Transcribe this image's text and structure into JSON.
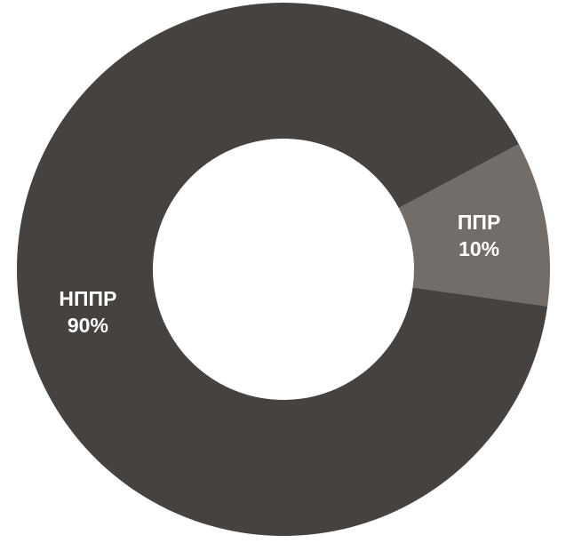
{
  "chart_data": {
    "type": "pie",
    "donut": true,
    "title": "",
    "categories": [
      "ППР",
      "НППР"
    ],
    "values": [
      10,
      90
    ],
    "value_labels": [
      "10%",
      "90%"
    ],
    "unit": "%",
    "colors": [
      "#726d69",
      "#45423f"
    ],
    "label_color": "#ffffff",
    "legend": "none"
  }
}
